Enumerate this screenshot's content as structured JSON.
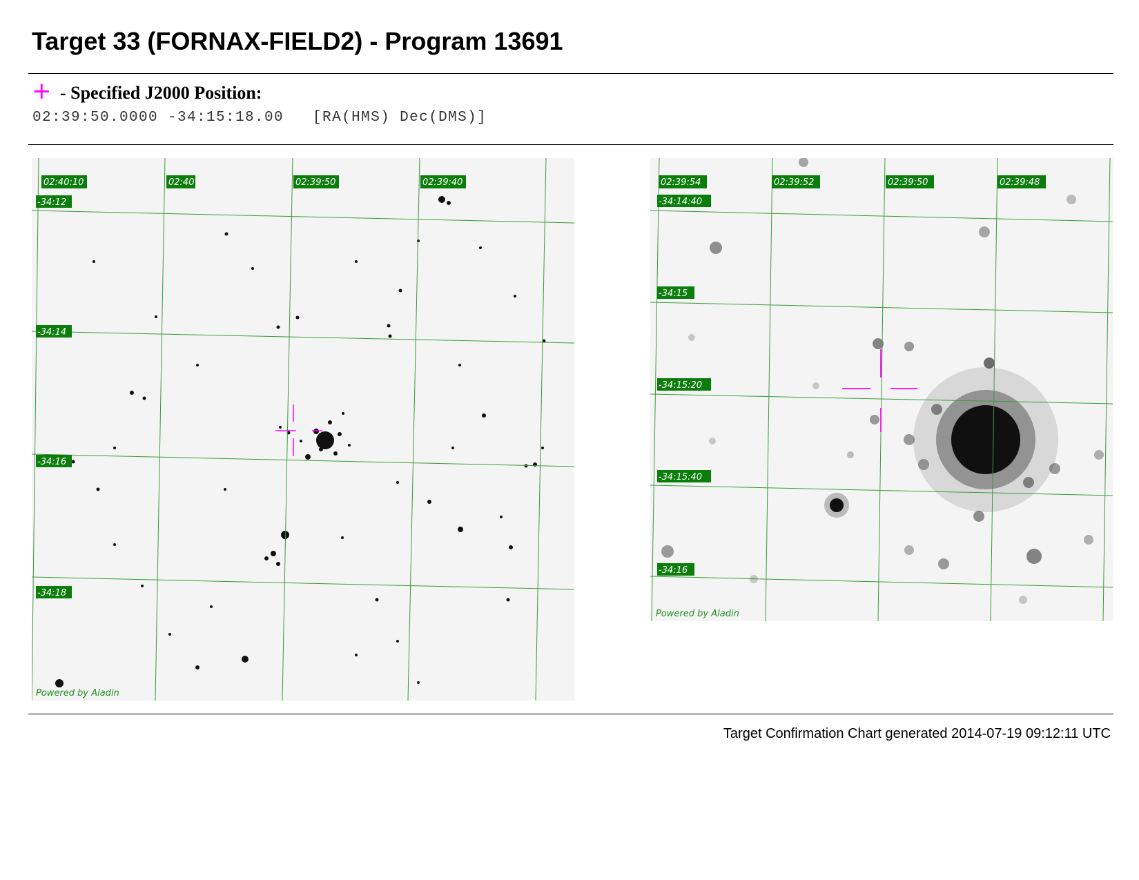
{
  "title": "Target 33 (FORNAX-FIELD2) - Program 13691",
  "position": {
    "marker_glyph": "+",
    "marker_color": "#ff00ff",
    "label": "- Specified J2000 Position:",
    "coords": "02:39:50.0000 -34:15:18.00   [RA(HMS) Dec(DMS)]"
  },
  "charts": [
    {
      "ra_labels": [
        "02:40:10",
        "02:40",
        "02:39:50",
        "02:39:40"
      ],
      "dec_labels": [
        "-34:12",
        "-34:14",
        "-34:16",
        "-34:18"
      ],
      "credit": "Powered by Aladin"
    },
    {
      "ra_labels": [
        "02:39:54",
        "02:39:52",
        "02:39:50",
        "02:39:48"
      ],
      "dec_labels": [
        "-34:14:40",
        "-34:15",
        "-34:15:20",
        "-34:15:40",
        "-34:16"
      ],
      "credit": "Powered by Aladin"
    }
  ],
  "colors": {
    "grid": "#3a9a3a",
    "label_bg": "#0a7d0a",
    "label_text": "#ffffff",
    "crosshair": "#ff00ff"
  },
  "footer": "Target Confirmation Chart generated 2014-07-19 09:12:11 UTC"
}
